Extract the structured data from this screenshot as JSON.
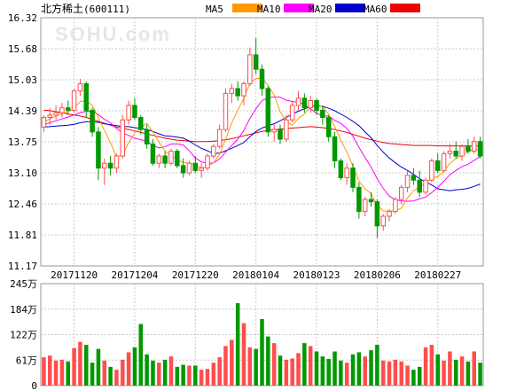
{
  "header": {
    "title": "北方稀土",
    "code": "(600111)"
  },
  "watermark": "SOHU.com",
  "colors": {
    "MA5": "#ff9900",
    "MA10": "#ff00ff",
    "MA20": "#0000cc",
    "MA60": "#ee0000",
    "up": "#ff4d4d",
    "down": "#009900"
  },
  "chart_data": [
    {
      "type": "candlestick",
      "title": "北方稀土(600111)",
      "ylim": [
        11.17,
        16.32
      ],
      "y_ticks": [
        "16.32",
        "15.68",
        "15.03",
        "14.39",
        "13.75",
        "13.10",
        "12.46",
        "11.81",
        "11.17"
      ],
      "date_ticks": [
        {
          "label": "20171120",
          "index": 5
        },
        {
          "label": "20171204",
          "index": 15
        },
        {
          "label": "20171220",
          "index": 25
        },
        {
          "label": "20180104",
          "index": 35
        },
        {
          "label": "20180123",
          "index": 45
        },
        {
          "label": "20180206",
          "index": 55
        },
        {
          "label": "20180227",
          "index": 65
        }
      ],
      "legend": [
        {
          "name": "MA5",
          "color": "#ff9900"
        },
        {
          "name": "MA10",
          "color": "#ff00ff"
        },
        {
          "name": "MA20",
          "color": "#0000cc"
        },
        {
          "name": "MA60",
          "color": "#ee0000"
        }
      ],
      "ohlc": [
        [
          14.05,
          14.3,
          13.95,
          14.25
        ],
        [
          14.25,
          14.45,
          14.1,
          14.3
        ],
        [
          14.3,
          14.5,
          14.2,
          14.35
        ],
        [
          14.35,
          14.55,
          14.25,
          14.45
        ],
        [
          14.45,
          14.6,
          14.3,
          14.4
        ],
        [
          14.4,
          14.85,
          14.35,
          14.8
        ],
        [
          14.8,
          15.05,
          14.7,
          14.95
        ],
        [
          14.95,
          15.0,
          14.25,
          14.4
        ],
        [
          14.4,
          14.45,
          13.85,
          13.95
        ],
        [
          13.95,
          14.05,
          12.95,
          13.2
        ],
        [
          13.2,
          13.4,
          12.85,
          13.3
        ],
        [
          13.3,
          13.45,
          13.05,
          13.2
        ],
        [
          13.2,
          13.5,
          13.1,
          13.45
        ],
        [
          13.45,
          14.3,
          13.4,
          14.2
        ],
        [
          14.2,
          14.6,
          14.1,
          14.5
        ],
        [
          14.5,
          14.65,
          14.2,
          14.25
        ],
        [
          14.25,
          14.3,
          13.9,
          14.0
        ],
        [
          14.0,
          14.1,
          13.6,
          13.7
        ],
        [
          13.7,
          13.8,
          13.25,
          13.3
        ],
        [
          13.3,
          13.5,
          13.2,
          13.45
        ],
        [
          13.45,
          13.55,
          13.2,
          13.3
        ],
        [
          13.3,
          13.6,
          13.25,
          13.55
        ],
        [
          13.55,
          13.6,
          13.2,
          13.25
        ],
        [
          13.25,
          13.4,
          13.0,
          13.1
        ],
        [
          13.1,
          13.35,
          13.05,
          13.3
        ],
        [
          13.3,
          13.45,
          13.1,
          13.15
        ],
        [
          13.15,
          13.3,
          13.0,
          13.2
        ],
        [
          13.2,
          13.5,
          13.15,
          13.45
        ],
        [
          13.45,
          13.7,
          13.4,
          13.65
        ],
        [
          13.65,
          14.1,
          13.6,
          14.0
        ],
        [
          14.0,
          14.85,
          13.95,
          14.75
        ],
        [
          14.75,
          14.95,
          14.55,
          14.85
        ],
        [
          14.85,
          15.0,
          14.6,
          14.7
        ],
        [
          14.7,
          15.0,
          14.5,
          14.95
        ],
        [
          14.95,
          15.7,
          14.9,
          15.55
        ],
        [
          15.55,
          15.9,
          15.15,
          15.25
        ],
        [
          15.25,
          15.35,
          14.7,
          14.85
        ],
        [
          14.85,
          14.9,
          13.85,
          13.95
        ],
        [
          13.95,
          14.1,
          13.75,
          14.0
        ],
        [
          14.0,
          14.1,
          13.7,
          13.8
        ],
        [
          13.8,
          14.3,
          13.75,
          14.2
        ],
        [
          14.2,
          14.6,
          14.15,
          14.5
        ],
        [
          14.5,
          14.8,
          14.4,
          14.65
        ],
        [
          14.65,
          14.75,
          14.35,
          14.45
        ],
        [
          14.45,
          14.7,
          14.35,
          14.6
        ],
        [
          14.6,
          14.65,
          14.3,
          14.4
        ],
        [
          14.4,
          14.5,
          14.1,
          14.25
        ],
        [
          14.25,
          14.3,
          13.75,
          13.85
        ],
        [
          13.85,
          13.95,
          13.2,
          13.35
        ],
        [
          13.35,
          13.4,
          12.95,
          13.0
        ],
        [
          13.0,
          13.3,
          12.85,
          13.2
        ],
        [
          13.2,
          13.3,
          12.7,
          12.8
        ],
        [
          12.8,
          12.9,
          12.15,
          12.3
        ],
        [
          12.3,
          12.6,
          12.2,
          12.55
        ],
        [
          12.55,
          12.7,
          12.4,
          12.5
        ],
        [
          12.5,
          12.55,
          11.75,
          12.0
        ],
        [
          12.0,
          12.25,
          11.9,
          12.2
        ],
        [
          12.2,
          12.35,
          12.1,
          12.3
        ],
        [
          12.3,
          12.6,
          12.25,
          12.55
        ],
        [
          12.55,
          12.85,
          12.45,
          12.8
        ],
        [
          12.8,
          13.15,
          12.7,
          13.05
        ],
        [
          13.05,
          13.2,
          12.85,
          12.95
        ],
        [
          12.95,
          13.15,
          12.6,
          12.7
        ],
        [
          12.7,
          13.0,
          12.65,
          12.95
        ],
        [
          12.95,
          13.4,
          12.9,
          13.35
        ],
        [
          13.35,
          13.5,
          13.1,
          13.15
        ],
        [
          13.15,
          13.55,
          13.1,
          13.5
        ],
        [
          13.5,
          13.7,
          13.4,
          13.55
        ],
        [
          13.55,
          13.75,
          13.4,
          13.45
        ],
        [
          13.45,
          13.7,
          13.35,
          13.65
        ],
        [
          13.65,
          13.8,
          13.5,
          13.55
        ],
        [
          13.55,
          13.85,
          13.5,
          13.75
        ],
        [
          13.75,
          13.85,
          13.4,
          13.45
        ]
      ],
      "ma5": [
        14.15,
        14.22,
        14.28,
        14.33,
        14.37,
        14.44,
        14.58,
        14.6,
        14.5,
        14.25,
        13.98,
        13.73,
        13.43,
        13.47,
        13.73,
        13.93,
        14.04,
        14.13,
        13.95,
        13.74,
        13.55,
        13.46,
        13.37,
        13.32,
        13.3,
        13.27,
        13.2,
        13.24,
        13.31,
        13.49,
        13.8,
        14.14,
        14.4,
        14.65,
        14.96,
        15.06,
        15.07,
        14.91,
        14.72,
        14.37,
        14.16,
        14.09,
        14.23,
        14.32,
        14.48,
        14.52,
        14.47,
        14.32,
        14.06,
        13.78,
        13.53,
        13.24,
        12.93,
        12.77,
        12.67,
        12.43,
        12.31,
        12.31,
        12.31,
        12.37,
        12.58,
        12.73,
        12.81,
        12.89,
        13.0,
        13.02,
        13.13,
        13.3,
        13.4,
        13.46,
        13.54,
        13.59,
        13.58
      ],
      "ma10": [
        14.1,
        14.14,
        14.18,
        14.22,
        14.26,
        14.3,
        14.35,
        14.38,
        14.38,
        14.31,
        14.21,
        14.14,
        14.02,
        13.93,
        13.88,
        13.82,
        13.79,
        13.76,
        13.67,
        13.62,
        13.64,
        13.7,
        13.7,
        13.68,
        13.56,
        13.41,
        13.33,
        13.3,
        13.31,
        13.39,
        13.53,
        13.67,
        13.8,
        13.98,
        14.23,
        14.43,
        14.6,
        14.66,
        14.68,
        14.67,
        14.61,
        14.58,
        14.57,
        14.52,
        14.43,
        14.34,
        14.28,
        14.28,
        14.19,
        14.13,
        14.02,
        13.86,
        13.63,
        13.42,
        13.22,
        12.98,
        12.78,
        12.62,
        12.54,
        12.52,
        12.51,
        12.52,
        12.56,
        12.6,
        12.69,
        12.8,
        12.93,
        13.06,
        13.15,
        13.23,
        13.28,
        13.36,
        13.44
      ],
      "ma20": [
        14.05,
        14.06,
        14.07,
        14.08,
        14.09,
        14.11,
        14.14,
        14.16,
        14.16,
        14.15,
        14.12,
        14.1,
        14.08,
        14.06,
        14.06,
        14.04,
        14.02,
        14.0,
        13.96,
        13.91,
        13.87,
        13.86,
        13.84,
        13.82,
        13.76,
        13.68,
        13.61,
        13.56,
        13.5,
        13.51,
        13.56,
        13.61,
        13.67,
        13.73,
        13.85,
        13.96,
        14.03,
        14.08,
        14.12,
        14.18,
        14.25,
        14.32,
        14.38,
        14.43,
        14.48,
        14.49,
        14.48,
        14.44,
        14.39,
        14.32,
        14.25,
        14.17,
        14.08,
        13.95,
        13.83,
        13.67,
        13.53,
        13.41,
        13.31,
        13.22,
        13.15,
        13.07,
        12.98,
        12.91,
        12.85,
        12.77,
        12.75,
        12.73,
        12.75,
        12.76,
        12.78,
        12.82,
        12.87
      ],
      "ma60": [
        14.4,
        14.39,
        14.37,
        14.35,
        14.32,
        14.3,
        14.28,
        14.25,
        14.21,
        14.17,
        14.13,
        14.09,
        14.05,
        14.02,
        14.0,
        13.97,
        13.94,
        13.91,
        13.88,
        13.85,
        13.82,
        13.8,
        13.78,
        13.77,
        13.76,
        13.75,
        13.75,
        13.75,
        13.76,
        13.77,
        13.79,
        13.81,
        13.84,
        13.87,
        13.9,
        13.93,
        13.96,
        13.98,
        14.0,
        14.01,
        14.02,
        14.03,
        14.04,
        14.05,
        14.06,
        14.05,
        14.04,
        14.02,
        14.0,
        13.97,
        13.94,
        13.9,
        13.86,
        13.82,
        13.79,
        13.76,
        13.73,
        13.71,
        13.7,
        13.69,
        13.68,
        13.67,
        13.67,
        13.67,
        13.67,
        13.66,
        13.66,
        13.66,
        13.66,
        13.66,
        13.66,
        13.66,
        13.66
      ]
    },
    {
      "type": "bar",
      "title": "",
      "ylim": [
        0,
        245
      ],
      "y_ticks": [
        "245万",
        "184万",
        "122万",
        "61万",
        "0"
      ],
      "unit": "万",
      "values": [
        68,
        72,
        60,
        62,
        58,
        90,
        105,
        98,
        55,
        88,
        60,
        45,
        38,
        62,
        80,
        92,
        148,
        75,
        60,
        55,
        62,
        70,
        45,
        50,
        48,
        48,
        38,
        40,
        55,
        68,
        95,
        110,
        198,
        150,
        92,
        88,
        160,
        118,
        102,
        72,
        62,
        65,
        78,
        102,
        95,
        82,
        70,
        64,
        82,
        60,
        55,
        75,
        80,
        70,
        85,
        98,
        60,
        58,
        62,
        58,
        48,
        38,
        45,
        92,
        98,
        75,
        60,
        82,
        62,
        70,
        58,
        82,
        55
      ]
    }
  ]
}
